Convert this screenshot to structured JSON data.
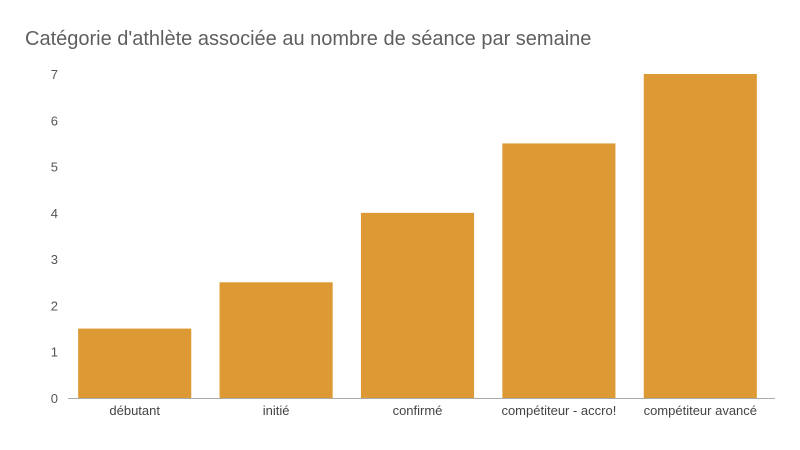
{
  "chart_data": {
    "type": "bar",
    "title": "Catégorie d'athlète associée au nombre de séance par semaine",
    "xlabel": "",
    "ylabel": "",
    "categories": [
      "débutant",
      "initié",
      "confirmé",
      "compétiteur - accro!",
      "compétiteur avancé"
    ],
    "values": [
      1.5,
      2.5,
      4,
      5.5,
      7
    ],
    "ylim": [
      0,
      7
    ],
    "yticks": [
      "0",
      "1",
      "2",
      "3",
      "4",
      "5",
      "6",
      "7"
    ],
    "grid": false,
    "legend": "none",
    "bar_color": "#dd9933",
    "axis_color": "#aaaaaa"
  }
}
